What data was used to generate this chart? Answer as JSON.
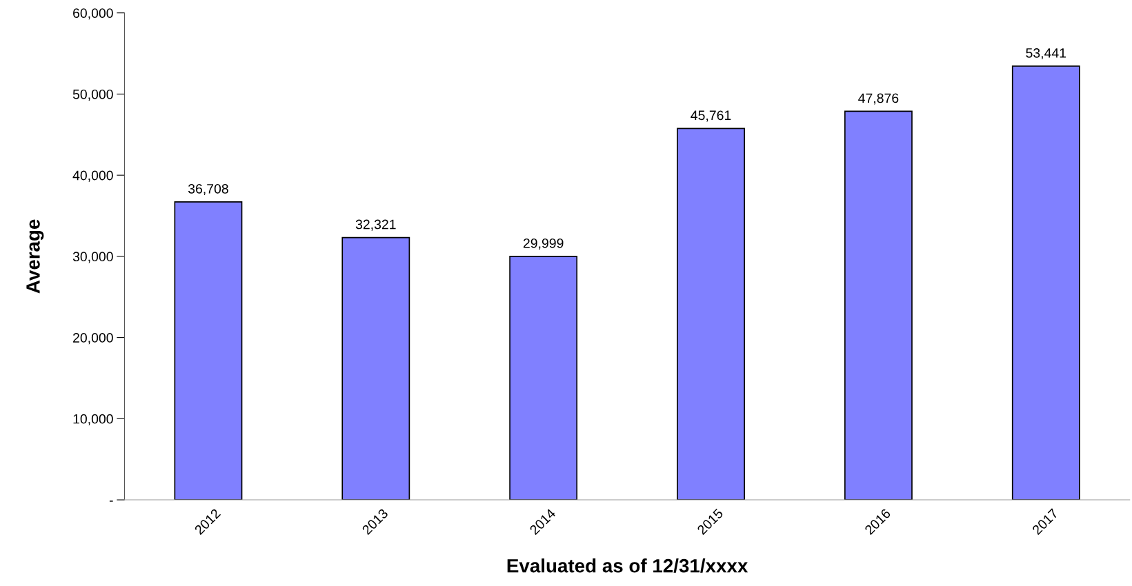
{
  "chart_data": {
    "type": "bar",
    "xlabel": "Evaluated as of 12/31/xxxx",
    "ylabel": "Average",
    "categories": [
      "2012",
      "2013",
      "2014",
      "2015",
      "2016",
      "2017"
    ],
    "values": [
      36708,
      32321,
      29999,
      45761,
      47876,
      53441
    ],
    "color": "#8080ff",
    "ylim": [
      0,
      60000
    ],
    "yticks": [
      {
        "value": 0,
        "label": "-"
      },
      {
        "value": 10000,
        "label": "10,000"
      },
      {
        "value": 20000,
        "label": "20,000"
      },
      {
        "value": 30000,
        "label": "30,000"
      },
      {
        "value": 40000,
        "label": "40,000"
      },
      {
        "value": 50000,
        "label": "50,000"
      },
      {
        "value": 60000,
        "label": "60,000"
      }
    ],
    "value_labels": [
      "36,708",
      "32,321",
      "29,999",
      "45,761",
      "47,876",
      "53,441"
    ],
    "grid": false,
    "legend": false
  }
}
